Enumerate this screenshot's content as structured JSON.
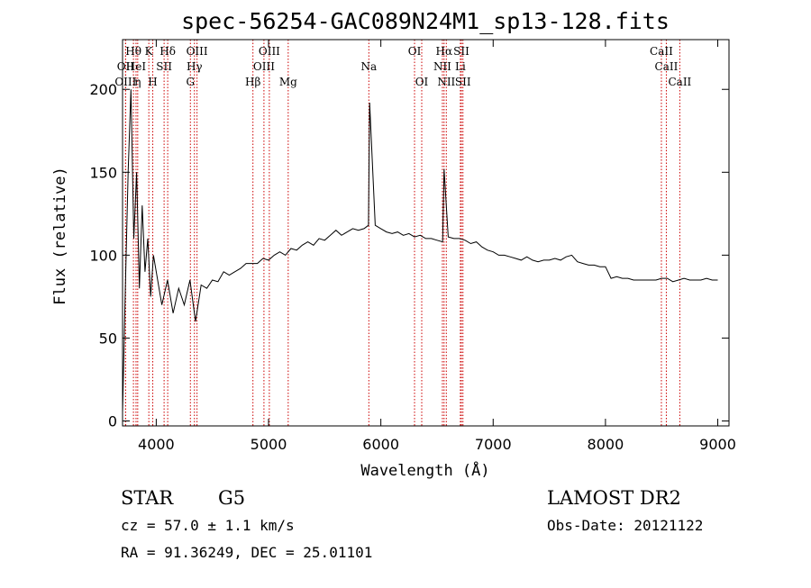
{
  "chart_data": {
    "type": "line",
    "title": "spec-56254-GAC089N24M1_sp13-128.fits",
    "xlabel": "Wavelength (Å)",
    "ylabel": "Flux (relative)",
    "xlim": [
      3700,
      9100
    ],
    "ylim": [
      -3,
      230
    ],
    "xticks": [
      4000,
      5000,
      6000,
      7000,
      8000,
      9000
    ],
    "yticks": [
      0,
      50,
      100,
      150,
      200
    ],
    "grid": false,
    "line_color": "#000000",
    "marker_color": "#cc0000",
    "series": [
      {
        "x": [
          3700,
          3725,
          3750,
          3775,
          3800,
          3825,
          3850,
          3875,
          3900,
          3925,
          3950,
          3975,
          4000,
          4050,
          4100,
          4150,
          4200,
          4250,
          4300,
          4350,
          4400,
          4450,
          4500,
          4550,
          4600,
          4650,
          4700,
          4750,
          4800,
          4850,
          4900,
          4950,
          5000,
          5050,
          5100,
          5150,
          5200,
          5250,
          5300,
          5350,
          5400,
          5450,
          5500,
          5550,
          5600,
          5650,
          5700,
          5750,
          5800,
          5850,
          5890,
          5900,
          5950,
          6000,
          6050,
          6100,
          6150,
          6200,
          6250,
          6300,
          6350,
          6400,
          6450,
          6500,
          6550,
          6563,
          6600,
          6650,
          6700,
          6750,
          6800,
          6850,
          6900,
          6950,
          7000,
          7050,
          7100,
          7150,
          7200,
          7250,
          7300,
          7350,
          7400,
          7450,
          7500,
          7550,
          7600,
          7650,
          7700,
          7750,
          7800,
          7850,
          7900,
          7950,
          8000,
          8050,
          8100,
          8150,
          8200,
          8250,
          8300,
          8350,
          8400,
          8450,
          8500,
          8550,
          8600,
          8650,
          8700,
          8750,
          8800,
          8850,
          8900,
          8950,
          9000
        ],
        "y": [
          5,
          80,
          150,
          200,
          110,
          150,
          80,
          130,
          90,
          110,
          75,
          100,
          90,
          70,
          85,
          65,
          80,
          70,
          85,
          60,
          82,
          80,
          85,
          84,
          90,
          88,
          90,
          92,
          95,
          95,
          95,
          98,
          97,
          100,
          102,
          100,
          104,
          103,
          106,
          108,
          106,
          110,
          109,
          112,
          115,
          112,
          114,
          116,
          115,
          116,
          118,
          192,
          118,
          116,
          114,
          113,
          114,
          112,
          113,
          111,
          112,
          110,
          110,
          109,
          108,
          152,
          111,
          110,
          110,
          109,
          107,
          108,
          105,
          103,
          102,
          100,
          100,
          99,
          98,
          97,
          99,
          97,
          96,
          97,
          97,
          98,
          97,
          99,
          100,
          96,
          95,
          94,
          94,
          93,
          93,
          86,
          87,
          86,
          86,
          85,
          85,
          85,
          85,
          85,
          86,
          86,
          84,
          85,
          86,
          85,
          85,
          85,
          86,
          85,
          85
        ]
      }
    ],
    "line_markers": [
      {
        "label": "Hθ",
        "x": 3797,
        "row": 0
      },
      {
        "label": "OII",
        "x": 3727,
        "row": 1
      },
      {
        "label": "HeI",
        "x": 3820,
        "row": 1
      },
      {
        "label": "OIII",
        "x": 3727,
        "row": 2
      },
      {
        "label": "η",
        "x": 3835,
        "row": 2
      },
      {
        "label": "K",
        "x": 3934,
        "row": 0
      },
      {
        "label": "H",
        "x": 3969,
        "row": 2
      },
      {
        "label": "SII",
        "x": 4070,
        "row": 1
      },
      {
        "label": "Hδ",
        "x": 4102,
        "row": 0
      },
      {
        "label": "OIII",
        "x": 4363,
        "row": 0
      },
      {
        "label": "Hγ",
        "x": 4340,
        "row": 1
      },
      {
        "label": "G",
        "x": 4304,
        "row": 2
      },
      {
        "label": "Hβ",
        "x": 4861,
        "row": 2
      },
      {
        "label": "OIII",
        "x": 5007,
        "row": 0
      },
      {
        "label": "OIII",
        "x": 4959,
        "row": 1
      },
      {
        "label": "Mg",
        "x": 5175,
        "row": 2
      },
      {
        "label": "Na",
        "x": 5893,
        "row": 1
      },
      {
        "label": "OI",
        "x": 6300,
        "row": 0
      },
      {
        "label": "OI",
        "x": 6364,
        "row": 2
      },
      {
        "label": "Hα",
        "x": 6563,
        "row": 0
      },
      {
        "label": "NII",
        "x": 6548,
        "row": 1
      },
      {
        "label": "NII",
        "x": 6583,
        "row": 2
      },
      {
        "label": "SII",
        "x": 6717,
        "row": 0
      },
      {
        "label": "Li",
        "x": 6708,
        "row": 1
      },
      {
        "label": "SII",
        "x": 6731,
        "row": 2
      },
      {
        "label": "CaII",
        "x": 8498,
        "row": 0
      },
      {
        "label": "CaII",
        "x": 8542,
        "row": 1
      },
      {
        "label": "CaII",
        "x": 8662,
        "row": 2
      }
    ]
  },
  "info": {
    "object_class": "STAR",
    "subclass": "G5",
    "survey": "LAMOST DR2",
    "cz": "cz = 57.0 ± 1.1 km/s",
    "obs_date": "Obs-Date: 20121122",
    "coords": "RA =  91.36249, DEC =  25.01101"
  }
}
